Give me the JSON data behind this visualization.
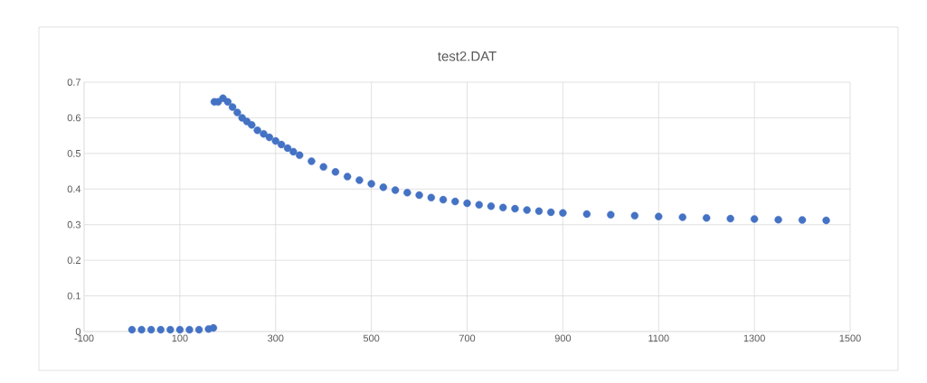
{
  "chart_data": {
    "type": "scatter",
    "title": "test2.DAT",
    "series": [
      {
        "color": "#4472c4",
        "x": [
          0,
          20,
          40,
          60,
          80,
          100,
          120,
          140,
          160,
          170,
          172,
          180,
          190,
          200,
          210,
          220,
          230,
          240,
          250,
          262,
          275,
          287,
          300,
          312,
          325,
          337,
          350,
          375,
          400,
          425,
          450,
          475,
          500,
          525,
          550,
          575,
          600,
          625,
          650,
          675,
          700,
          725,
          750,
          775,
          800,
          825,
          850,
          875,
          900,
          950,
          1000,
          1050,
          1100,
          1150,
          1200,
          1250,
          1300,
          1350,
          1400,
          1450
        ],
        "values": [
          0.005,
          0.005,
          0.005,
          0.005,
          0.005,
          0.005,
          0.005,
          0.005,
          0.007,
          0.01,
          0.645,
          0.645,
          0.655,
          0.645,
          0.63,
          0.615,
          0.6,
          0.59,
          0.58,
          0.565,
          0.555,
          0.545,
          0.535,
          0.525,
          0.515,
          0.505,
          0.495,
          0.478,
          0.462,
          0.448,
          0.435,
          0.425,
          0.415,
          0.405,
          0.397,
          0.39,
          0.383,
          0.376,
          0.37,
          0.365,
          0.36,
          0.356,
          0.352,
          0.348,
          0.345,
          0.341,
          0.338,
          0.335,
          0.333,
          0.33,
          0.328,
          0.325,
          0.323,
          0.321,
          0.319,
          0.317,
          0.316,
          0.314,
          0.313,
          0.312
        ]
      }
    ],
    "xlim": [
      -100,
      1500
    ],
    "ylim": [
      0,
      0.7
    ],
    "xticks": [
      -100,
      100,
      300,
      500,
      700,
      900,
      1100,
      1300,
      1500
    ],
    "yticks": [
      0,
      0.1,
      0.2,
      0.3,
      0.4,
      0.5,
      0.6,
      0.7
    ],
    "grid": true,
    "marker": "circle"
  }
}
